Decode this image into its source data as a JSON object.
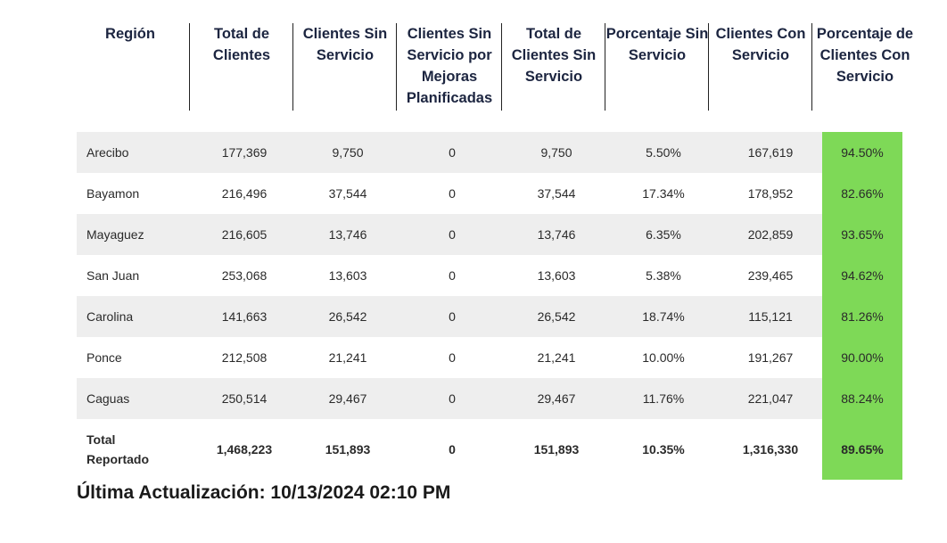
{
  "header": {
    "columns": [
      "Región",
      "Total de Clientes",
      "Clientes Sin Servicio",
      "Clientes Sin Servicio por Mejoras Planificadas",
      "Total de Clientes Sin Servicio",
      "Porcentaje Sin Servicio",
      "Clientes Con Servicio",
      "Porcentaje de Clientes Con Servicio"
    ]
  },
  "rows": [
    {
      "region": "Arecibo",
      "total": "177,369",
      "sin": "9,750",
      "mejoras": "0",
      "total_sin": "9,750",
      "pct_sin": "5.50%",
      "con": "167,619",
      "pct_con": "94.50%"
    },
    {
      "region": "Bayamon",
      "total": "216,496",
      "sin": "37,544",
      "mejoras": "0",
      "total_sin": "37,544",
      "pct_sin": "17.34%",
      "con": "178,952",
      "pct_con": "82.66%"
    },
    {
      "region": "Mayaguez",
      "total": "216,605",
      "sin": "13,746",
      "mejoras": "0",
      "total_sin": "13,746",
      "pct_sin": "6.35%",
      "con": "202,859",
      "pct_con": "93.65%"
    },
    {
      "region": "San Juan",
      "total": "253,068",
      "sin": "13,603",
      "mejoras": "0",
      "total_sin": "13,603",
      "pct_sin": "5.38%",
      "con": "239,465",
      "pct_con": "94.62%"
    },
    {
      "region": "Carolina",
      "total": "141,663",
      "sin": "26,542",
      "mejoras": "0",
      "total_sin": "26,542",
      "pct_sin": "18.74%",
      "con": "115,121",
      "pct_con": "81.26%"
    },
    {
      "region": "Ponce",
      "total": "212,508",
      "sin": "21,241",
      "mejoras": "0",
      "total_sin": "21,241",
      "pct_sin": "10.00%",
      "con": "191,267",
      "pct_con": "90.00%"
    },
    {
      "region": "Caguas",
      "total": "250,514",
      "sin": "29,467",
      "mejoras": "0",
      "total_sin": "29,467",
      "pct_sin": "11.76%",
      "con": "221,047",
      "pct_con": "88.24%"
    }
  ],
  "totals": {
    "region_line1": "Total",
    "region_line2": "Reportado",
    "total": "1,468,223",
    "sin": "151,893",
    "mejoras": "0",
    "total_sin": "151,893",
    "pct_sin": "10.35%",
    "con": "1,316,330",
    "pct_con": "89.65%"
  },
  "footer": {
    "text": "Última Actualización: 10/13/2024 02:10 PM"
  },
  "colors": {
    "highlight": "#7ed957",
    "row_shade": "#eeeeee"
  }
}
